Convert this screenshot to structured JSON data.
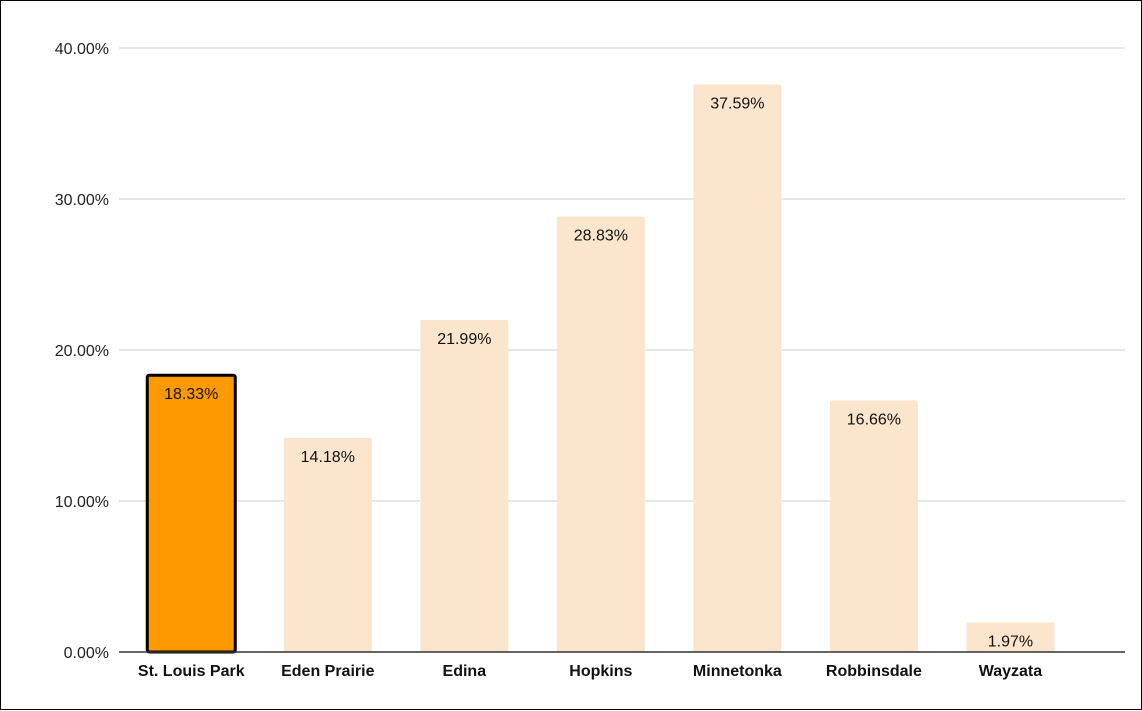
{
  "chart_data": {
    "type": "bar",
    "title": "",
    "xlabel": "",
    "ylabel": "",
    "categories": [
      "St. Louis Park",
      "Eden Prairie",
      "Edina",
      "Hopkins",
      "Minnetonka",
      "Robbinsdale",
      "Wayzata"
    ],
    "values": [
      18.33,
      14.18,
      21.99,
      28.83,
      37.59,
      16.66,
      1.97
    ],
    "data_labels": [
      "18.33%",
      "14.18%",
      "21.99%",
      "28.83%",
      "37.59%",
      "16.66%",
      "1.97%"
    ],
    "yticks": [
      0,
      10,
      20,
      30,
      40
    ],
    "ytick_labels": [
      "0.00%",
      "10.00%",
      "20.00%",
      "30.00%",
      "40.00%"
    ],
    "ylim": [
      0,
      40
    ],
    "grid": true,
    "legend": "none",
    "highlight_index": 0,
    "colors": {
      "bar": "#fce5cd",
      "highlight": "#ff9900",
      "highlight_border": "#000000",
      "grid": "#cccccc",
      "axis": "#333333"
    }
  }
}
